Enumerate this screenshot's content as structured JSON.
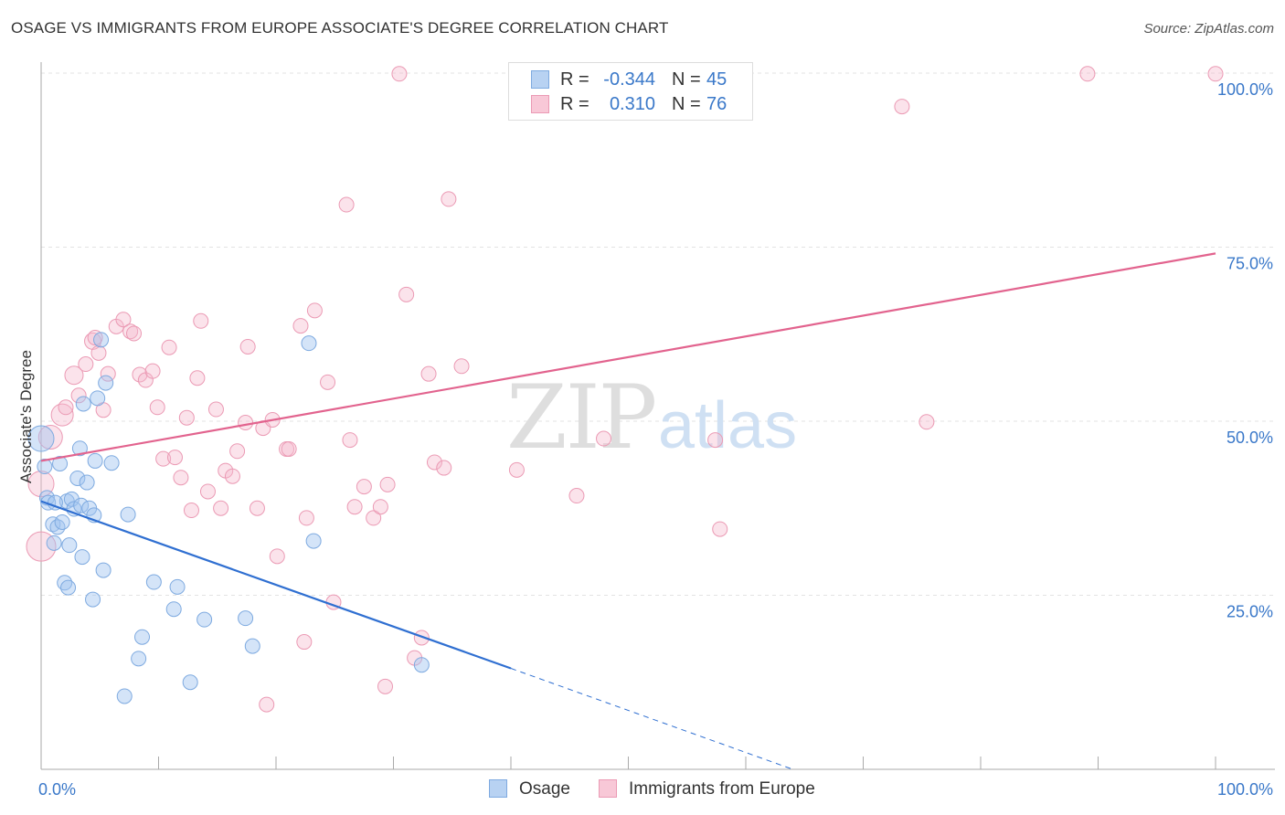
{
  "title": "OSAGE VS IMMIGRANTS FROM EUROPE ASSOCIATE'S DEGREE CORRELATION CHART",
  "source": "Source: ZipAtlas.com",
  "watermark": {
    "zip": "ZIP",
    "atlas": "atlas"
  },
  "legend": {
    "r_label": "R =",
    "n_label": "N =",
    "rows": [
      {
        "name": "Osage",
        "r": "-0.344",
        "n": "45",
        "fill": "#b8d2f2",
        "stroke": "#7eaae0"
      },
      {
        "name": "Immigrants from Europe",
        "r": "0.310",
        "n": "76",
        "fill": "#f8c8d7",
        "stroke": "#eb9ab4"
      }
    ]
  },
  "chart_data": {
    "type": "scatter",
    "title": "OSAGE VS IMMIGRANTS FROM EUROPE ASSOCIATE'S DEGREE CORRELATION CHART",
    "xlabel": "",
    "ylabel": "Associate's Degree",
    "xlim": [
      0,
      100
    ],
    "ylim": [
      0,
      100
    ],
    "x_tick_labels": [
      "0.0%",
      "100.0%"
    ],
    "y_ticks": [
      25,
      50,
      75,
      100
    ],
    "y_tick_labels": [
      "25.0%",
      "50.0%",
      "75.0%",
      "100.0%"
    ],
    "grid": true,
    "series": [
      {
        "name": "Osage",
        "color": "#6a9fe0",
        "line_color": "#2f6fd1",
        "trend": {
          "x0": 0,
          "y0": 38.5,
          "x1": 40,
          "y1": 14.5,
          "dash_to_x": 64,
          "dash_to_y": 0
        },
        "points": [
          [
            0.0,
            47.5,
            14
          ],
          [
            0.3,
            43.5,
            8
          ],
          [
            0.5,
            39.0,
            8
          ],
          [
            0.6,
            38.3,
            8
          ],
          [
            1.0,
            35.2,
            8
          ],
          [
            1.1,
            32.5,
            8
          ],
          [
            1.4,
            34.8,
            8
          ],
          [
            1.6,
            43.9,
            8
          ],
          [
            1.8,
            35.5,
            8
          ],
          [
            2.0,
            26.8,
            8
          ],
          [
            2.2,
            38.5,
            8
          ],
          [
            2.3,
            26.1,
            8
          ],
          [
            2.4,
            32.2,
            8
          ],
          [
            2.6,
            38.8,
            8
          ],
          [
            2.8,
            37.4,
            8
          ],
          [
            3.1,
            41.8,
            8
          ],
          [
            3.3,
            46.1,
            8
          ],
          [
            3.4,
            37.9,
            8
          ],
          [
            3.5,
            30.5,
            8
          ],
          [
            3.6,
            52.5,
            8
          ],
          [
            3.9,
            41.2,
            8
          ],
          [
            4.1,
            37.5,
            8
          ],
          [
            4.4,
            24.4,
            8
          ],
          [
            4.5,
            36.5,
            8
          ],
          [
            4.6,
            44.3,
            8
          ],
          [
            4.8,
            53.3,
            8
          ],
          [
            5.1,
            61.7,
            8
          ],
          [
            5.3,
            28.6,
            8
          ],
          [
            5.5,
            55.5,
            8
          ],
          [
            7.1,
            10.5,
            8
          ],
          [
            7.4,
            36.6,
            8
          ],
          [
            8.3,
            15.9,
            8
          ],
          [
            8.6,
            19.0,
            8
          ],
          [
            9.6,
            26.9,
            8
          ],
          [
            11.3,
            23.0,
            8
          ],
          [
            11.6,
            26.2,
            8
          ],
          [
            12.7,
            12.5,
            8
          ],
          [
            13.9,
            21.5,
            8
          ],
          [
            17.4,
            21.7,
            8
          ],
          [
            18.0,
            17.7,
            8
          ],
          [
            22.8,
            61.2,
            8
          ],
          [
            23.2,
            32.8,
            8
          ],
          [
            32.4,
            15.0,
            8
          ],
          [
            1.2,
            38.3,
            8
          ],
          [
            6.0,
            44.0,
            8
          ]
        ]
      },
      {
        "name": "Immigrants from Europe",
        "color": "#f09bb6",
        "line_color": "#e2638e",
        "trend": {
          "x0": 0,
          "y0": 44.3,
          "x1": 100,
          "y1": 74.1
        },
        "points": [
          [
            0.0,
            32.0,
            16
          ],
          [
            0.0,
            41.0,
            14
          ],
          [
            0.8,
            47.7,
            13
          ],
          [
            1.8,
            50.9,
            12
          ],
          [
            2.1,
            52.0,
            8
          ],
          [
            2.8,
            56.6,
            10
          ],
          [
            3.2,
            53.7,
            8
          ],
          [
            3.8,
            58.2,
            8
          ],
          [
            4.4,
            61.5,
            9
          ],
          [
            4.6,
            62.0,
            8
          ],
          [
            4.9,
            59.8,
            8
          ],
          [
            5.3,
            51.6,
            8
          ],
          [
            5.7,
            56.8,
            8
          ],
          [
            6.4,
            63.6,
            8
          ],
          [
            7.0,
            64.6,
            8
          ],
          [
            7.6,
            62.9,
            8
          ],
          [
            7.9,
            62.6,
            8
          ],
          [
            8.4,
            56.7,
            8
          ],
          [
            8.9,
            55.9,
            8
          ],
          [
            9.5,
            57.2,
            8
          ],
          [
            9.9,
            52.0,
            8
          ],
          [
            10.4,
            44.6,
            8
          ],
          [
            10.9,
            60.6,
            8
          ],
          [
            11.4,
            44.8,
            8
          ],
          [
            11.9,
            41.9,
            8
          ],
          [
            12.4,
            50.5,
            8
          ],
          [
            12.8,
            37.2,
            8
          ],
          [
            13.3,
            56.2,
            8
          ],
          [
            13.6,
            64.4,
            8
          ],
          [
            14.2,
            39.9,
            8
          ],
          [
            14.9,
            51.7,
            8
          ],
          [
            15.3,
            37.5,
            8
          ],
          [
            15.7,
            42.9,
            8
          ],
          [
            16.3,
            42.1,
            8
          ],
          [
            16.7,
            45.7,
            8
          ],
          [
            17.4,
            49.8,
            8
          ],
          [
            17.6,
            60.7,
            8
          ],
          [
            18.4,
            37.5,
            8
          ],
          [
            18.9,
            49.0,
            8
          ],
          [
            19.2,
            9.3,
            8
          ],
          [
            19.7,
            50.2,
            8
          ],
          [
            20.1,
            30.6,
            8
          ],
          [
            20.9,
            46.0,
            8
          ],
          [
            21.1,
            46.0,
            8
          ],
          [
            22.1,
            63.7,
            8
          ],
          [
            22.4,
            18.3,
            8
          ],
          [
            22.6,
            36.1,
            8
          ],
          [
            23.3,
            65.9,
            8
          ],
          [
            24.4,
            55.6,
            8
          ],
          [
            24.9,
            24.0,
            8
          ],
          [
            26.0,
            81.1,
            8
          ],
          [
            26.3,
            47.3,
            8
          ],
          [
            26.7,
            37.7,
            8
          ],
          [
            27.5,
            40.6,
            8
          ],
          [
            28.3,
            36.1,
            8
          ],
          [
            28.9,
            37.7,
            8
          ],
          [
            29.5,
            40.9,
            8
          ],
          [
            29.3,
            11.9,
            8
          ],
          [
            30.5,
            99.9,
            8
          ],
          [
            31.1,
            68.2,
            8
          ],
          [
            31.8,
            16.0,
            8
          ],
          [
            32.4,
            18.9,
            8
          ],
          [
            33.0,
            56.8,
            8
          ],
          [
            33.5,
            44.1,
            8
          ],
          [
            34.3,
            43.3,
            8
          ],
          [
            34.7,
            81.9,
            8
          ],
          [
            35.8,
            57.9,
            8
          ],
          [
            40.5,
            43.0,
            8
          ],
          [
            45.6,
            39.3,
            8
          ],
          [
            47.9,
            47.5,
            8
          ],
          [
            57.4,
            47.3,
            8
          ],
          [
            57.8,
            34.5,
            8
          ],
          [
            73.3,
            95.2,
            8
          ],
          [
            75.4,
            49.9,
            8
          ],
          [
            89.1,
            99.9,
            8
          ],
          [
            100.0,
            99.9,
            8
          ]
        ]
      }
    ]
  },
  "bottom_legend": [
    {
      "label": "Osage"
    },
    {
      "label": "Immigrants from Europe"
    }
  ]
}
